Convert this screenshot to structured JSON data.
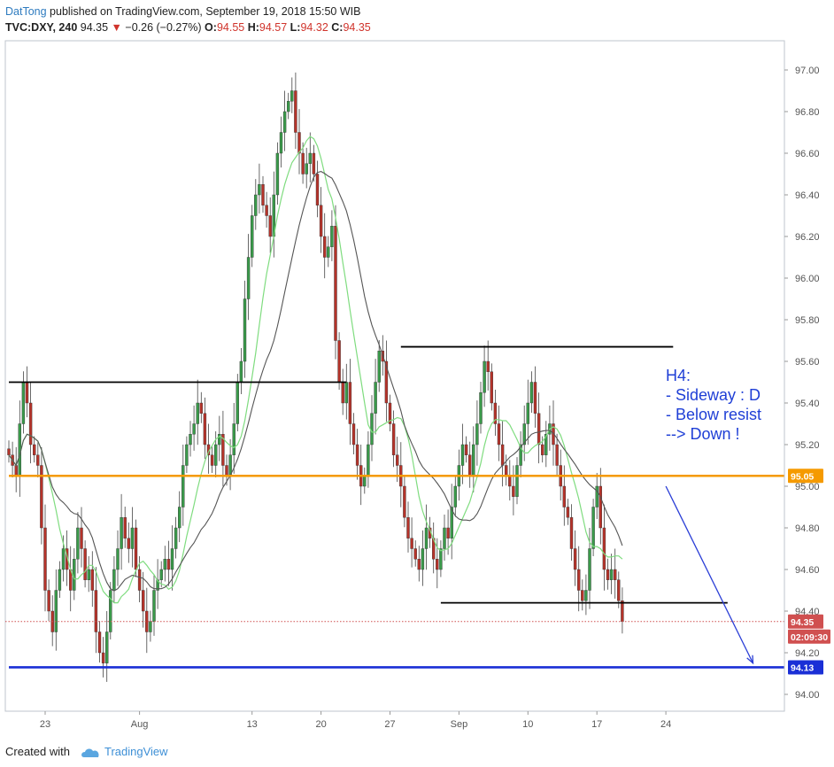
{
  "header": {
    "username": "DatTong",
    "published_text": "published on TradingView.com, September 19, 2018 15:50 WIB",
    "symbol": "TVC:DXY, 240",
    "last": "94.35",
    "change_arrow": "▼",
    "change": "−0.26 (−0.27%)",
    "o_label": "O:",
    "o_value": "94.55",
    "h_label": "H:",
    "h_value": "94.57",
    "l_label": "L:",
    "l_value": "94.32",
    "c_label": "C:",
    "c_value": "94.35"
  },
  "footer": {
    "created_with": "Created with",
    "brand": "TradingView",
    "brand_icon": "tradingview-cloud-icon"
  },
  "chart_data": {
    "type": "candlestick",
    "title": "",
    "xlabel": "",
    "ylabel": "",
    "ylim": [
      93.9,
      97.15
    ],
    "yticks": [
      "94.00",
      "94.20",
      "94.40",
      "94.60",
      "94.80",
      "95.00",
      "95.20",
      "95.40",
      "95.60",
      "95.80",
      "96.00",
      "96.20",
      "96.40",
      "96.60",
      "96.80",
      "97.00"
    ],
    "xticks": [
      {
        "label": "23",
        "bar": 10
      },
      {
        "label": "Aug",
        "bar": 36
      },
      {
        "label": "13",
        "bar": 67
      },
      {
        "label": "20",
        "bar": 86
      },
      {
        "label": "27",
        "bar": 105
      },
      {
        "label": "Sep",
        "bar": 124
      },
      {
        "label": "10",
        "bar": 143
      },
      {
        "label": "17",
        "bar": 162
      },
      {
        "label": "24",
        "bar": 181
      }
    ],
    "total_bars": 195,
    "colors": {
      "up": "#3a9a4a",
      "down": "#b5332a",
      "sma_fast": "#7fdc7f",
      "sma_slow": "#555555",
      "resistance": "#000000",
      "support_orange": "#f59a00",
      "support_blue": "#1a2fd6",
      "arrow": "#2a3ed6",
      "annotation": "#1f3fd6",
      "last_price": "#d05050"
    },
    "closes": [
      95.15,
      95.1,
      95.05,
      95.3,
      95.5,
      95.4,
      95.2,
      95.15,
      95.1,
      94.8,
      94.5,
      94.4,
      94.3,
      94.5,
      94.6,
      94.7,
      94.6,
      94.5,
      94.65,
      94.8,
      94.7,
      94.55,
      94.6,
      94.5,
      94.3,
      94.2,
      94.15,
      94.3,
      94.5,
      94.6,
      94.7,
      94.85,
      94.75,
      94.7,
      94.8,
      94.6,
      94.5,
      94.4,
      94.3,
      94.35,
      94.5,
      94.55,
      94.6,
      94.65,
      94.6,
      94.7,
      94.8,
      94.9,
      95.1,
      95.2,
      95.25,
      95.3,
      95.4,
      95.35,
      95.2,
      95.15,
      95.1,
      95.2,
      95.25,
      95.1,
      95.05,
      95.15,
      95.3,
      95.5,
      95.6,
      95.9,
      96.1,
      96.3,
      96.4,
      96.45,
      96.35,
      96.3,
      96.2,
      96.4,
      96.6,
      96.7,
      96.8,
      96.85,
      96.9,
      96.7,
      96.6,
      96.5,
      96.55,
      96.6,
      96.5,
      96.35,
      96.2,
      96.1,
      96.15,
      96.25,
      95.7,
      95.5,
      95.4,
      95.5,
      95.3,
      95.2,
      95.1,
      95.0,
      95.05,
      95.2,
      95.35,
      95.5,
      95.65,
      95.6,
      95.4,
      95.3,
      95.15,
      95.1,
      95.0,
      94.85,
      94.75,
      94.7,
      94.65,
      94.6,
      94.7,
      94.8,
      94.75,
      94.65,
      94.6,
      94.7,
      94.8,
      94.75,
      94.9,
      95.0,
      95.1,
      95.2,
      95.15,
      95.05,
      95.2,
      95.3,
      95.45,
      95.6,
      95.55,
      95.4,
      95.3,
      95.2,
      95.1,
      95.05,
      95.0,
      94.95,
      95.1,
      95.2,
      95.3,
      95.4,
      95.5,
      95.35,
      95.2,
      95.15,
      95.25,
      95.3,
      95.2,
      95.1,
      95.0,
      94.9,
      94.85,
      94.7,
      94.6,
      94.5,
      94.45,
      94.5,
      94.7,
      94.9,
      95.0,
      94.8,
      94.6,
      94.55,
      94.6,
      94.55,
      94.45,
      94.35
    ],
    "levels": [
      {
        "name": "resistance-left",
        "value": 95.5,
        "from_bar": 0,
        "to_bar": 93
      },
      {
        "name": "resistance-mid",
        "value": 95.67,
        "from_bar": 108,
        "to_bar": 183
      },
      {
        "name": "support-right",
        "value": 94.44,
        "from_bar": 119,
        "to_bar": 198
      },
      {
        "name": "support-orange",
        "value": 95.05,
        "from_bar": 0,
        "to_bar": 220
      },
      {
        "name": "support-blue",
        "value": 94.13,
        "from_bar": 0,
        "to_bar": 220
      }
    ],
    "trend_arrow": {
      "from_bar": 181,
      "from_value": 95.0,
      "to_bar": 205,
      "to_value": 94.15
    },
    "price_labels": [
      {
        "value": "95.05",
        "y": 95.05,
        "color": "#f59a00"
      },
      {
        "value": "94.35",
        "y": 94.35,
        "color": "#d05050"
      },
      {
        "value": "02:09:30",
        "y": 94.25,
        "color": "#d05050"
      },
      {
        "value": "94.13",
        "y": 94.13,
        "color": "#1a2fd6"
      }
    ],
    "last_price_line": 94.35,
    "annotation": {
      "lines": [
        "H4:",
        "- Sideway : D",
        "- Below resist",
        "--> Down !"
      ]
    }
  }
}
